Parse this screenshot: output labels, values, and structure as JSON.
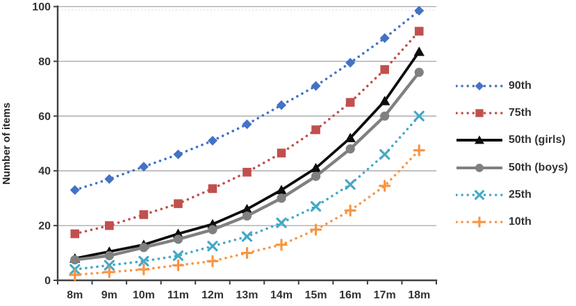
{
  "chart_data": {
    "type": "line",
    "title": "",
    "xlabel": "",
    "ylabel": "Number of items",
    "categories": [
      "8m",
      "9m",
      "10m",
      "11m",
      "12m",
      "13m",
      "14m",
      "15m",
      "16m",
      "17m",
      "18m"
    ],
    "ylim": [
      0,
      100
    ],
    "yticks": [
      0,
      20,
      40,
      60,
      80,
      100
    ],
    "grid": "horizontal major gridlines",
    "legend_position": "right",
    "plot_colors": {
      "gridline": "#A6A6A6",
      "axis": "#404040",
      "text": "#333333"
    },
    "series": [
      {
        "name": "90th",
        "color": "#4472C4",
        "line_style": "dotted",
        "marker": "diamond",
        "values": [
          33,
          37,
          41.5,
          46,
          51,
          57,
          64,
          71,
          79.5,
          88.5,
          98.5
        ]
      },
      {
        "name": "75th",
        "color": "#C0504D",
        "line_style": "dotted",
        "marker": "square",
        "values": [
          17,
          20,
          24,
          28,
          33.5,
          39.5,
          46.5,
          55,
          65,
          77,
          91
        ]
      },
      {
        "name": "50th (girls)",
        "color": "#0D0D0D",
        "line_style": "solid",
        "marker": "triangle",
        "values": [
          8,
          10.5,
          13,
          17,
          20.5,
          26,
          33,
          41,
          52,
          65.5,
          83.5
        ]
      },
      {
        "name": "50th (boys)",
        "color": "#808080",
        "line_style": "solid",
        "marker": "circle",
        "values": [
          7.5,
          9,
          12,
          15,
          18.5,
          23.5,
          30,
          38,
          48,
          60,
          76
        ]
      },
      {
        "name": "25th",
        "color": "#44A8C8",
        "line_style": "dotted",
        "marker": "x",
        "values": [
          4,
          5.5,
          7,
          9,
          12.5,
          16,
          21,
          27,
          35,
          46,
          60
        ]
      },
      {
        "name": "10th",
        "color": "#F79646",
        "line_style": "dotted",
        "marker": "plus",
        "values": [
          2,
          3,
          4,
          5.5,
          7,
          10,
          13,
          18.5,
          25.5,
          34.5,
          47.5
        ]
      }
    ]
  }
}
